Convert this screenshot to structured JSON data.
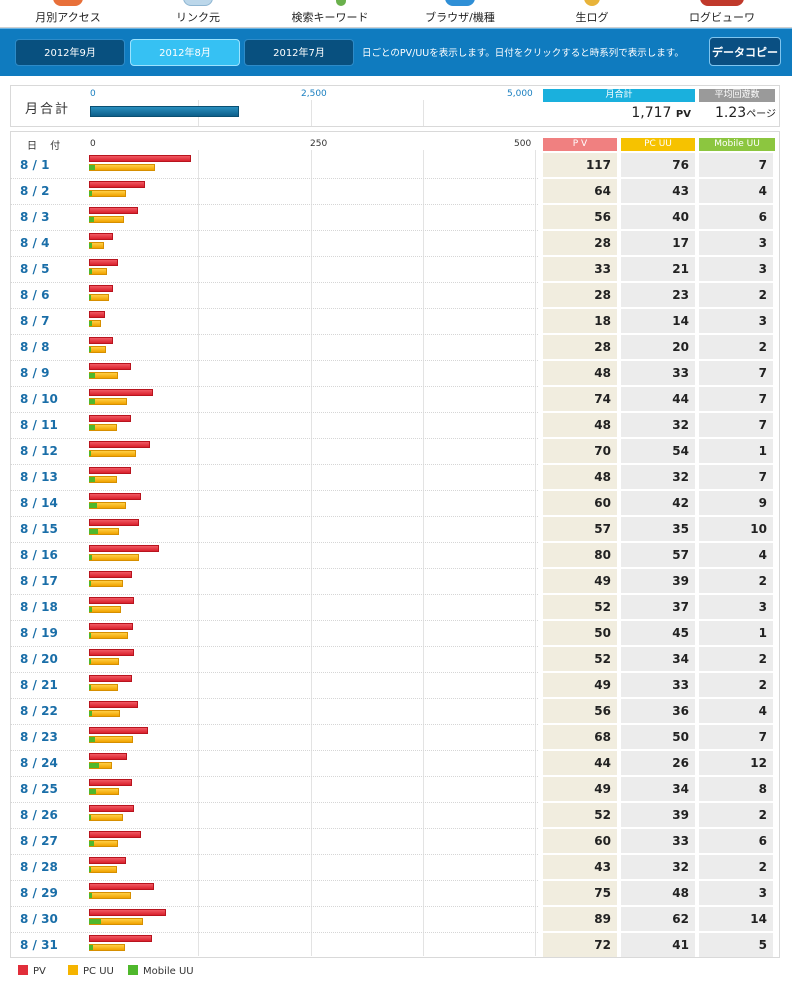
{
  "nav": {
    "items": [
      {
        "label": "月別アクセス",
        "icon": "calendar-icon",
        "color": "#e8703a"
      },
      {
        "label": "リンク元",
        "icon": "document-icon",
        "color": "#bcd7ea"
      },
      {
        "label": "検索キーワード",
        "icon": "magnifier-icon",
        "color": "#6ab04c"
      },
      {
        "label": "ブラウザ/機種",
        "icon": "globe-icon",
        "color": "#2f8fd6"
      },
      {
        "label": "生ログ",
        "icon": "log-icon",
        "color": "#e8b33a"
      },
      {
        "label": "ログビューワ",
        "icon": "viewer-icon",
        "color": "#c0392b"
      }
    ]
  },
  "months": [
    {
      "label": "2012年9月",
      "active": false
    },
    {
      "label": "2012年8月",
      "active": true
    },
    {
      "label": "2012年7月",
      "active": false
    }
  ],
  "note": "日ごとのPV/UUを表示します。日付をクリックすると時系列で表示します。",
  "copy_label": "データコピー",
  "summary": {
    "label": "月合計",
    "ticks": [
      "0",
      "2,500",
      "5,000"
    ],
    "axis_max": 5000,
    "total_pv": 1717,
    "total_label": "月合計",
    "total_value": "1,717",
    "total_unit": "PV",
    "avg_label": "平均回遊数",
    "avg_value": "1.23",
    "avg_unit": "ページ"
  },
  "daily": {
    "date_header": "日 付",
    "ticks": [
      "0",
      "250",
      "500"
    ],
    "axis_max": 500,
    "headers": {
      "pv": "P V",
      "pc": "PC UU",
      "mobile": "Mobile UU"
    },
    "colors": {
      "pv": "#f08080",
      "pc": "#f6c200",
      "mobile": "#8cc63f"
    },
    "rows": [
      {
        "date": "8 / 1",
        "pv": 117,
        "pc": 76,
        "mobile": 7
      },
      {
        "date": "8 / 2",
        "pv": 64,
        "pc": 43,
        "mobile": 4
      },
      {
        "date": "8 / 3",
        "pv": 56,
        "pc": 40,
        "mobile": 6
      },
      {
        "date": "8 / 4",
        "pv": 28,
        "pc": 17,
        "mobile": 3
      },
      {
        "date": "8 / 5",
        "pv": 33,
        "pc": 21,
        "mobile": 3
      },
      {
        "date": "8 / 6",
        "pv": 28,
        "pc": 23,
        "mobile": 2
      },
      {
        "date": "8 / 7",
        "pv": 18,
        "pc": 14,
        "mobile": 3
      },
      {
        "date": "8 / 8",
        "pv": 28,
        "pc": 20,
        "mobile": 2
      },
      {
        "date": "8 / 9",
        "pv": 48,
        "pc": 33,
        "mobile": 7
      },
      {
        "date": "8 / 10",
        "pv": 74,
        "pc": 44,
        "mobile": 7
      },
      {
        "date": "8 / 11",
        "pv": 48,
        "pc": 32,
        "mobile": 7
      },
      {
        "date": "8 / 12",
        "pv": 70,
        "pc": 54,
        "mobile": 1
      },
      {
        "date": "8 / 13",
        "pv": 48,
        "pc": 32,
        "mobile": 7
      },
      {
        "date": "8 / 14",
        "pv": 60,
        "pc": 42,
        "mobile": 9
      },
      {
        "date": "8 / 15",
        "pv": 57,
        "pc": 35,
        "mobile": 10
      },
      {
        "date": "8 / 16",
        "pv": 80,
        "pc": 57,
        "mobile": 4
      },
      {
        "date": "8 / 17",
        "pv": 49,
        "pc": 39,
        "mobile": 2
      },
      {
        "date": "8 / 18",
        "pv": 52,
        "pc": 37,
        "mobile": 3
      },
      {
        "date": "8 / 19",
        "pv": 50,
        "pc": 45,
        "mobile": 1
      },
      {
        "date": "8 / 20",
        "pv": 52,
        "pc": 34,
        "mobile": 2
      },
      {
        "date": "8 / 21",
        "pv": 49,
        "pc": 33,
        "mobile": 2
      },
      {
        "date": "8 / 22",
        "pv": 56,
        "pc": 36,
        "mobile": 4
      },
      {
        "date": "8 / 23",
        "pv": 68,
        "pc": 50,
        "mobile": 7
      },
      {
        "date": "8 / 24",
        "pv": 44,
        "pc": 26,
        "mobile": 12
      },
      {
        "date": "8 / 25",
        "pv": 49,
        "pc": 34,
        "mobile": 8
      },
      {
        "date": "8 / 26",
        "pv": 52,
        "pc": 39,
        "mobile": 2
      },
      {
        "date": "8 / 27",
        "pv": 60,
        "pc": 33,
        "mobile": 6
      },
      {
        "date": "8 / 28",
        "pv": 43,
        "pc": 32,
        "mobile": 2
      },
      {
        "date": "8 / 29",
        "pv": 75,
        "pc": 48,
        "mobile": 3
      },
      {
        "date": "8 / 30",
        "pv": 89,
        "pc": 62,
        "mobile": 14
      },
      {
        "date": "8 / 31",
        "pv": 72,
        "pc": 41,
        "mobile": 5
      }
    ]
  },
  "legend": {
    "pv": "PV",
    "pc": "PC UU",
    "mobile": "Mobile UU"
  }
}
